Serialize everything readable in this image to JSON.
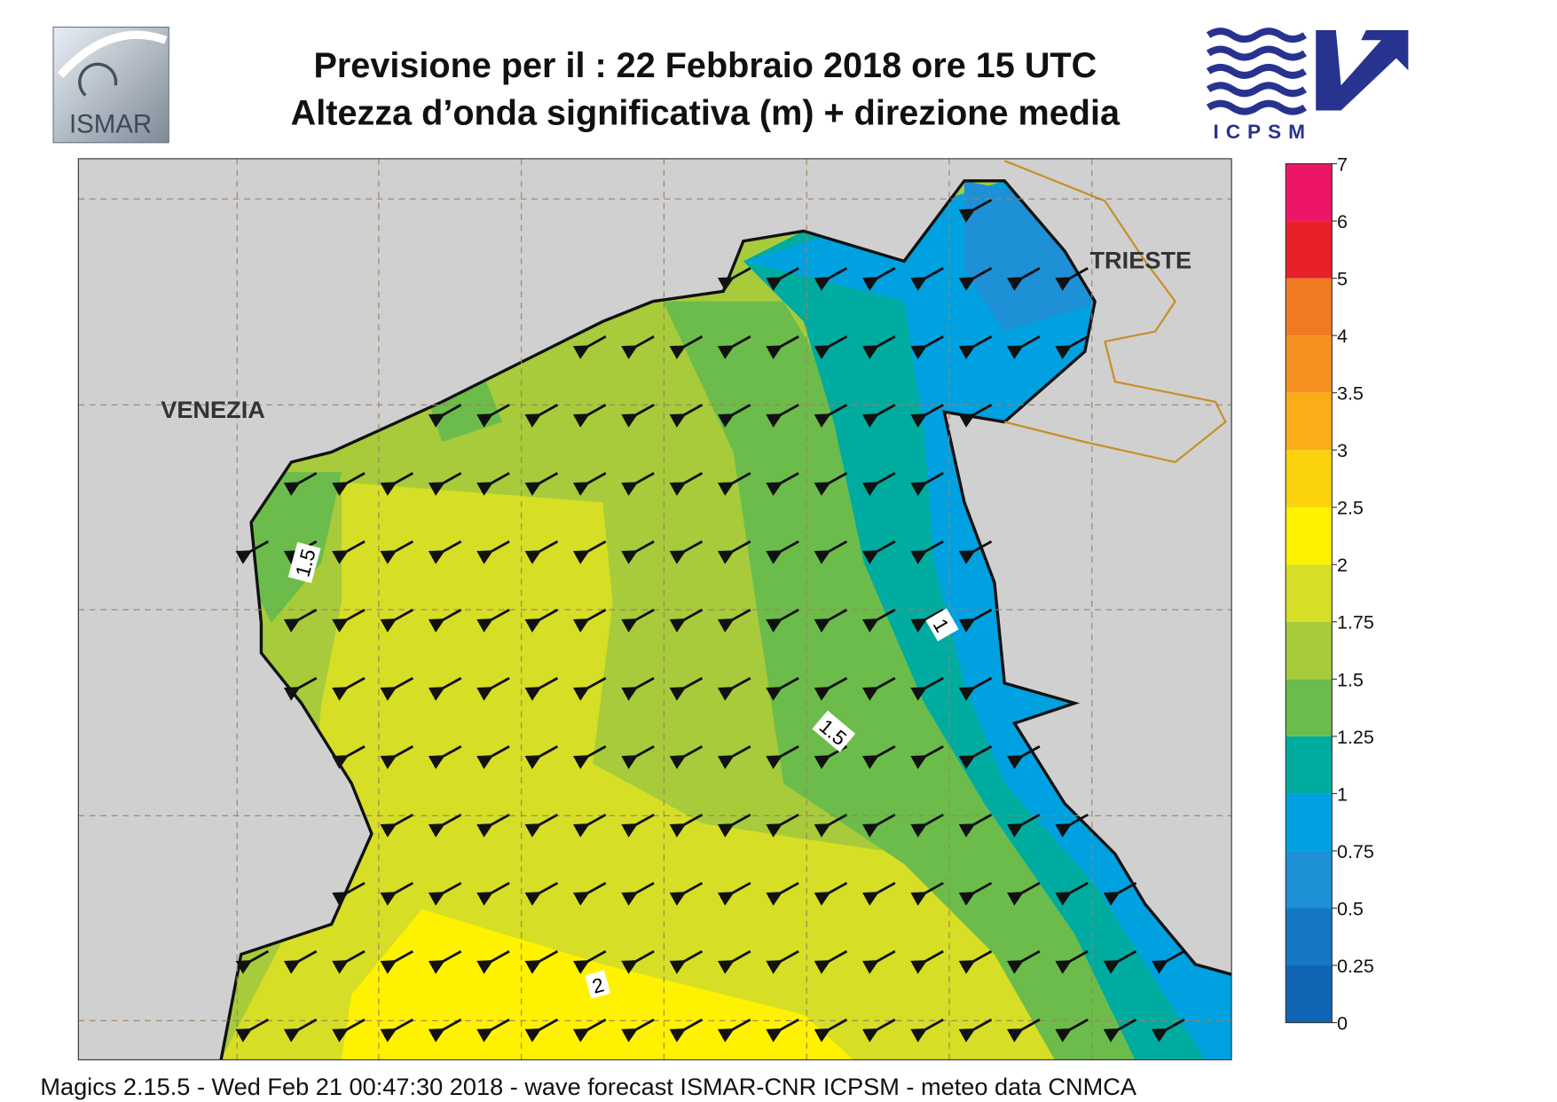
{
  "header": {
    "title_line1": "Previsione per il  :  22  Febbraio 2018   ore 15 UTC",
    "title_line2": "Altezza d’onda significativa (m) + direzione media",
    "logo_left": "ISMAR",
    "logo_right": "ICPSM"
  },
  "map": {
    "places": [
      "VENEZIA",
      "TRIESTE"
    ],
    "contour_labels": [
      "1.5",
      "1",
      "1.5",
      "2"
    ]
  },
  "colorbar": {
    "ticks": [
      0,
      0.25,
      0.5,
      0.75,
      1,
      1.25,
      1.5,
      1.75,
      2,
      2.5,
      3,
      3.5,
      4,
      5,
      6,
      7
    ],
    "colors": [
      "#1064b4",
      "#1478c4",
      "#1e90d6",
      "#00a1e0",
      "#00aba0",
      "#6cbc4b",
      "#a7cb3b",
      "#d6de26",
      "#fff200",
      "#fcd20a",
      "#fbad18",
      "#f5911f",
      "#f07a22",
      "#e8202a",
      "#ec1566"
    ]
  },
  "footer": "Magics 2.15.5 - Wed Feb 21 00:47:30 2018 - wave forecast  ISMAR-CNR  ICPSM - meteo data   CNMCA"
}
